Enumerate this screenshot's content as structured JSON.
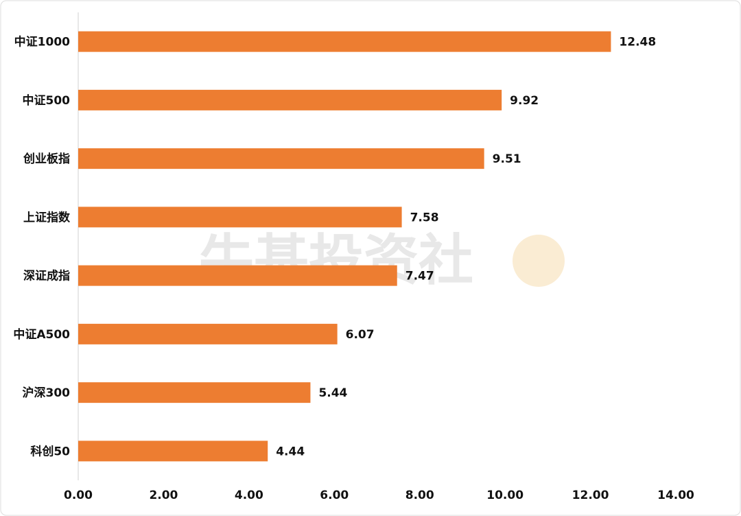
{
  "chart_data": {
    "type": "bar",
    "orientation": "horizontal",
    "watermark": "牛基投资社",
    "categories": [
      "中证1000",
      "中证500",
      "创业板指",
      "上证指数",
      "深证成指",
      "中证A500",
      "沪深300",
      "科创50"
    ],
    "values": [
      12.48,
      9.92,
      9.51,
      7.58,
      7.47,
      6.07,
      5.44,
      4.44
    ],
    "color": "#ed7d31",
    "xlim": [
      0,
      14
    ],
    "xticks": [
      {
        "value": 0,
        "label": "0.00"
      },
      {
        "value": 2,
        "label": "2.00"
      },
      {
        "value": 4,
        "label": "4.00"
      },
      {
        "value": 6,
        "label": "6.00"
      },
      {
        "value": 8,
        "label": "8.00"
      },
      {
        "value": 10,
        "label": "10.00"
      },
      {
        "value": 12,
        "label": "12.00"
      },
      {
        "value": 14,
        "label": "14.00"
      }
    ],
    "grid": false
  }
}
